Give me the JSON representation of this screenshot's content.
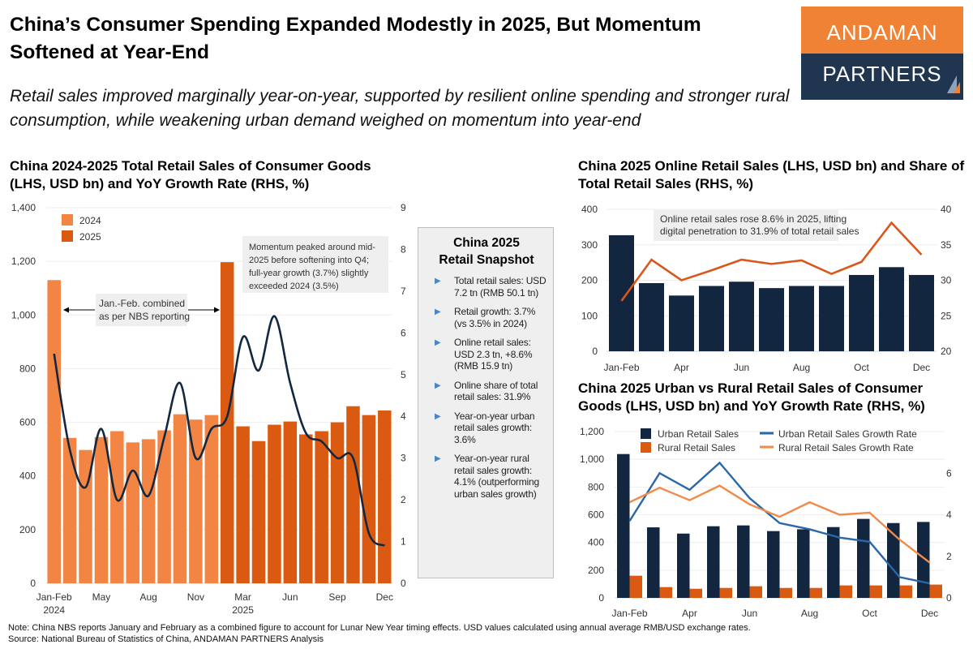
{
  "header": {
    "title": "China’s Consumer Spending Expanded Modestly in 2025, But Momentum Softened at Year-End",
    "subtitle": "Retail sales improved marginally year-on-year, supported by resilient online spending and stronger rural consumption, while weakening urban demand weighed on momentum into year-end"
  },
  "logo": {
    "top": "ANDAMAN",
    "bottom": "PARTNERS"
  },
  "snapshot": {
    "title_line1": "China 2025",
    "title_line2": "Retail Snapshot",
    "items": [
      "Total retail sales: USD 7.2 tn (RMB 50.1 tn)",
      "Retail growth: 3.7% (vs 3.5% in 2024)",
      "Online retail sales: USD 2.3 tn, +8.6% (RMB 15.9 tn)",
      "Online share of total retail sales: 31.9%",
      "Year-on-year urban retail sales growth: 3.6%",
      "Year-on-year rural retail sales growth: 4.1% (outperforming urban sales growth)"
    ]
  },
  "notes": {
    "note": "Note: China NBS reports January and February as a combined figure to account for Lunar New Year timing effects. USD values calculated using annual average RMB/USD exchange rates.",
    "source": "Source: National Bureau of Statistics of China, ANDAMAN PARTNERS Analysis"
  },
  "chart_data": [
    {
      "type": "bar+line",
      "title": "China 2024-2025 Total Retail Sales of Consumer Goods (LHS, USD bn) and YoY Growth Rate (RHS, %)",
      "categories": [
        "Jan-Feb 2024",
        "Mar 2024",
        "Apr 2024",
        "May 2024",
        "Jun 2024",
        "Jul 2024",
        "Aug 2024",
        "Sep 2024",
        "Oct 2024",
        "Nov 2024",
        "Dec 2024",
        "Jan-Feb 2025",
        "Mar 2025",
        "Apr 2025",
        "May 2025",
        "Jun 2025",
        "Jul 2025",
        "Aug 2025",
        "Sep 2025",
        "Oct 2025",
        "Nov 2025",
        "Dec 2025"
      ],
      "x_ticks": [
        {
          "index": 0,
          "label": "Jan-Feb",
          "sublabel": "2024"
        },
        {
          "index": 3,
          "label": "May",
          "sublabel": ""
        },
        {
          "index": 6,
          "label": "Aug",
          "sublabel": ""
        },
        {
          "index": 9,
          "label": "Nov",
          "sublabel": ""
        },
        {
          "index": 12,
          "label": "Mar",
          "sublabel": "2025"
        },
        {
          "index": 15,
          "label": "Jun",
          "sublabel": ""
        },
        {
          "index": 18,
          "label": "Sep",
          "sublabel": ""
        },
        {
          "index": 21,
          "label": "Dec",
          "sublabel": ""
        }
      ],
      "bar_series": [
        {
          "name": "2024",
          "color": "#F28444",
          "values": [
            1130,
            542,
            497,
            545,
            567,
            525,
            537,
            570,
            630,
            610,
            627
          ]
        },
        {
          "name": "2025",
          "color": "#DB5A11",
          "values": [
            1197,
            585,
            530,
            591,
            603,
            555,
            567,
            600,
            660,
            627,
            644
          ]
        }
      ],
      "line_series": {
        "color": "#132840",
        "axis": "right",
        "smooth": true,
        "values": [
          5.5,
          3.2,
          2.3,
          3.7,
          2.0,
          2.7,
          2.1,
          3.5,
          4.8,
          3.0,
          3.7,
          4.0,
          5.9,
          5.1,
          6.4,
          4.8,
          3.6,
          3.4,
          3.0,
          3.0,
          1.2,
          0.9
        ]
      },
      "ylim_left": [
        0,
        1400
      ],
      "yticks_left": [
        "0",
        "200",
        "400",
        "600",
        "800",
        "1,000",
        "1,200",
        "1,400"
      ],
      "ylim_right": [
        0,
        9
      ],
      "yticks_right": [
        "0",
        "1",
        "2",
        "3",
        "4",
        "5",
        "6",
        "7",
        "8",
        "9"
      ],
      "grid": true,
      "legend": "top-left",
      "annotations": [
        "Jan.-Feb. combined as per NBS reporting",
        "Momentum  peaked around mid-2025 before softening into Q4; full-year growth (3.7%) slightly exceeded 2024 (3.5%)"
      ]
    },
    {
      "type": "bar+line",
      "title": "China 2025 Online Retail Sales (LHS, USD bn) and Share of Total Retail Sales (RHS, %)",
      "categories": [
        "Jan-Feb",
        "Mar",
        "Apr",
        "May",
        "Jun",
        "Jul",
        "Aug",
        "Sep",
        "Oct",
        "Nov",
        "Dec"
      ],
      "bar_series": [
        {
          "color": "#12273F",
          "values": [
            327,
            192,
            157,
            184,
            196,
            178,
            184,
            184,
            215,
            237,
            215
          ]
        }
      ],
      "line_series": {
        "color": "#D9571A",
        "axis": "right",
        "smooth": false,
        "values": [
          27.1,
          32.9,
          30.0,
          31.4,
          32.9,
          32.3,
          32.8,
          30.9,
          32.6,
          38.1,
          33.6
        ]
      },
      "ylim_left": [
        0,
        400
      ],
      "yticks_left": [
        "0",
        "100",
        "200",
        "300",
        "400"
      ],
      "ylim_right": [
        20,
        40
      ],
      "yticks_right": [
        "20",
        "25",
        "30",
        "35",
        "40"
      ],
      "grid": true,
      "annotations": [
        "Online retail sales rose 8.6% in 2025, lifting digital penetration to 31.9% of total retail sales"
      ]
    },
    {
      "type": "grouped bar+line",
      "title": "China 2025 Urban vs Rural Retail Sales of Consumer Goods (LHS, USD bn) and YoY Growth Rate (RHS, %)",
      "categories": [
        "Jan-Feb",
        "Mar",
        "Apr",
        "May",
        "Jun",
        "Jul",
        "Aug",
        "Sep",
        "Oct",
        "Nov",
        "Dec"
      ],
      "bar_series": [
        {
          "name": "Urban Retail Sales",
          "color": "#12273F",
          "values": [
            1038,
            509,
            464,
            517,
            523,
            482,
            495,
            511,
            570,
            540,
            548
          ]
        },
        {
          "name": "Rural Retail Sales",
          "color": "#DB5A11",
          "values": [
            160,
            78,
            66,
            72,
            84,
            72,
            72,
            90,
            90,
            90,
            96
          ]
        }
      ],
      "line_series": [
        {
          "name": "Urban Retail Sales Growth Rate",
          "color": "#2A67A6",
          "axis": "right",
          "values": [
            3.7,
            6.0,
            5.2,
            6.5,
            4.8,
            3.6,
            3.3,
            2.9,
            2.7,
            1.0,
            0.7
          ]
        },
        {
          "name": "Rural Retail Sales Growth Rate",
          "color": "#F28A4A",
          "axis": "right",
          "values": [
            4.6,
            5.3,
            4.7,
            5.4,
            4.5,
            3.9,
            4.6,
            4.0,
            4.1,
            2.8,
            1.7
          ]
        }
      ],
      "ylim_left": [
        0,
        1200
      ],
      "yticks_left": [
        "0",
        "200",
        "400",
        "600",
        "800",
        "1,000",
        "1,200"
      ],
      "ylim_right": [
        0,
        8
      ],
      "yticks_right": [
        "0",
        "2",
        "4",
        "6"
      ],
      "grid": true,
      "legend": "top"
    }
  ]
}
